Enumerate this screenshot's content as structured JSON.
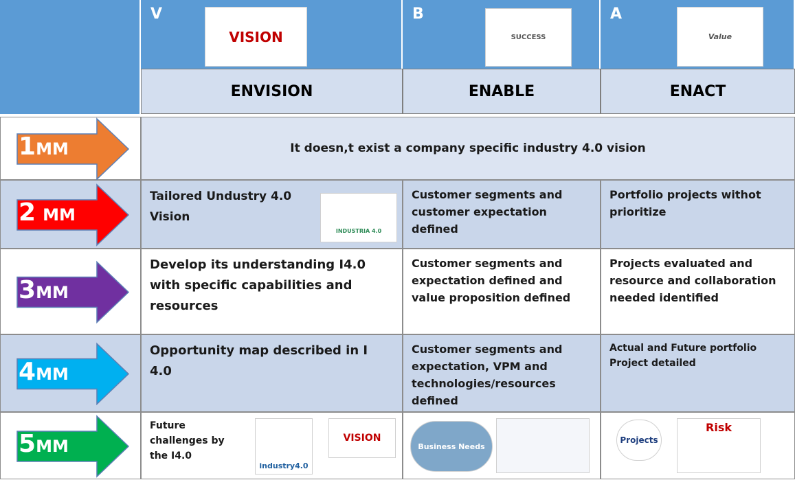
{
  "header": {
    "columns": [
      {
        "letter": "V",
        "title": "ENVISION",
        "image_text": "VISION"
      },
      {
        "letter": "B",
        "title": "ENABLE",
        "image_text": "SUCCESS"
      },
      {
        "letter": "A",
        "title": "ENACT",
        "image_text": "Value"
      }
    ]
  },
  "rows": [
    {
      "level": {
        "number": "1",
        "unit": "MM"
      },
      "arrow_color": "#ed7d31",
      "merged_text": "It doesn,t exist a company specific industry 4.0 vision"
    },
    {
      "level": {
        "number": "2",
        "unit": "MM"
      },
      "arrow_color": "#ff0000",
      "cells": [
        "Tailored Undustry 4.0 Vision",
        "Customer segments and customer expectation defined",
        "Portfolio projects withot prioritize"
      ],
      "image_texts": [
        "INDUSTRIA 4.0"
      ]
    },
    {
      "level": {
        "number": "3",
        "unit": "MM"
      },
      "arrow_color": "#7030a0",
      "cells": [
        "Develop its understanding I4.0 with specific capabilities and resources",
        "Customer segments and expectation defined and value proposition defined",
        "Projects evaluated and resource and collaboration needed identified"
      ]
    },
    {
      "level": {
        "number": "4",
        "unit": "MM"
      },
      "arrow_color": "#00b0f0",
      "cells": [
        "Opportunity map described in I 4.0",
        "Customer segments and expectation, VPM and technologies/resources defined",
        "Actual and Future portfolio Project detailed"
      ]
    },
    {
      "level": {
        "number": "5",
        "unit": "MM"
      },
      "arrow_color": "#00b050",
      "cells": [
        "Future challenges by the I4.0",
        "",
        ""
      ],
      "image_texts": [
        "industry4.0",
        "VISION",
        "Business Needs",
        "Projects",
        "Risk"
      ]
    }
  ]
}
